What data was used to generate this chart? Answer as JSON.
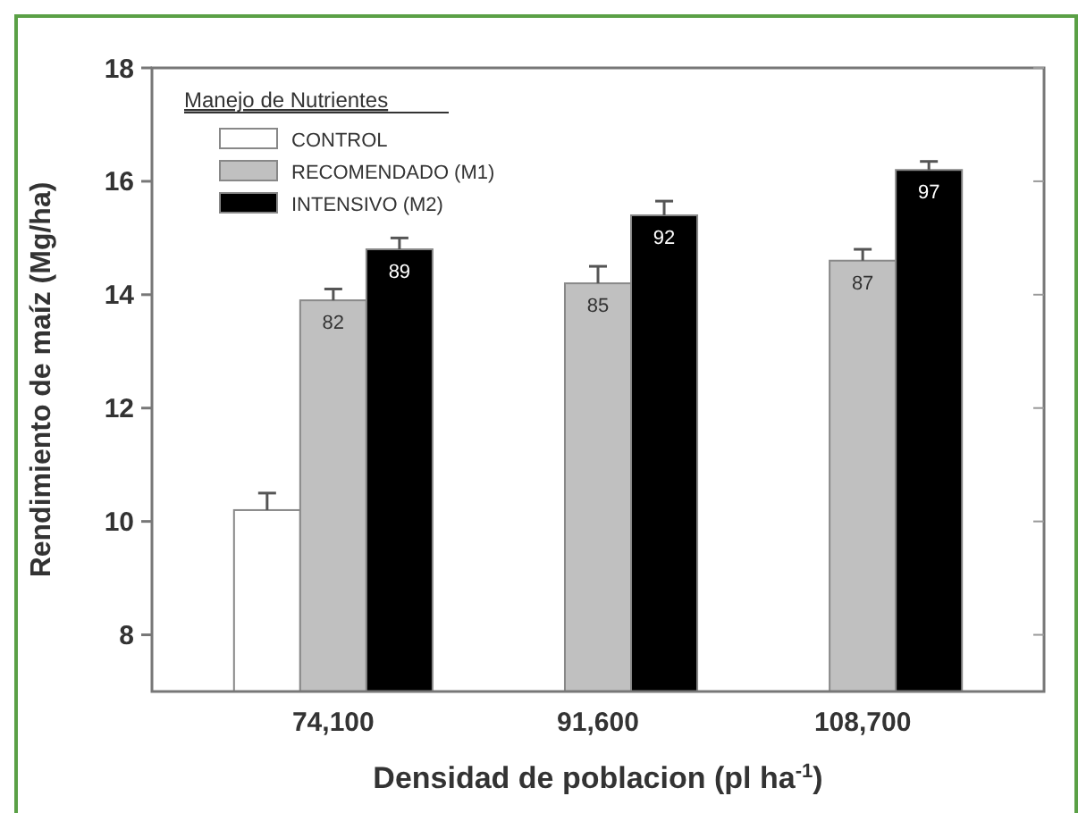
{
  "chart_data": {
    "type": "bar",
    "xlabel": "Densidad de poblacion (pl ha$^{-1}$)",
    "ylabel": "Rendimiento de maíz (Mg/ha)",
    "legend_title": "Manejo de Nutrientes",
    "legend": "top left",
    "categories": [
      "74,100",
      "91,600",
      "108,700"
    ],
    "ylim": [
      7,
      18
    ],
    "yticks": [
      8,
      10,
      12,
      14,
      16,
      18
    ],
    "grid": false,
    "annotations": [
      {
        "text": "82",
        "x": "74,100",
        "y": 13.9
      },
      {
        "text": "85",
        "x": "91,600",
        "y": 14.2
      },
      {
        "text": "87",
        "x": "108,700",
        "y": 14.6
      },
      "89",
      "92",
      "97"
    ],
    "series": [
      {
        "name": "CONTROL",
        "color": "#ffffff",
        "values": [
          10.2,
          null,
          null
        ],
        "errors": [
          [
            10.2,
            10.5
          ],
          null,
          null
        ]
      },
      {
        "name": "RECOMENDADO (M1)",
        "color": "#c0c0c0",
        "values": [
          13.9,
          14.2,
          14.6
        ],
        "errors": [
          [
            13.9,
            14.1
          ],
          [
            14.2,
            14.5
          ],
          [
            14.6,
            14.8
          ]
        ]
      },
      {
        "name": "INTENSIVO (M2)",
        "color": "#000000",
        "values": [
          14.8,
          15.4,
          16.2
        ],
        "errors": [
          [
            14.8,
            15.0
          ],
          [
            15.4,
            15.65
          ],
          [
            16.2,
            16.35
          ]
        ]
      }
    ]
  }
}
